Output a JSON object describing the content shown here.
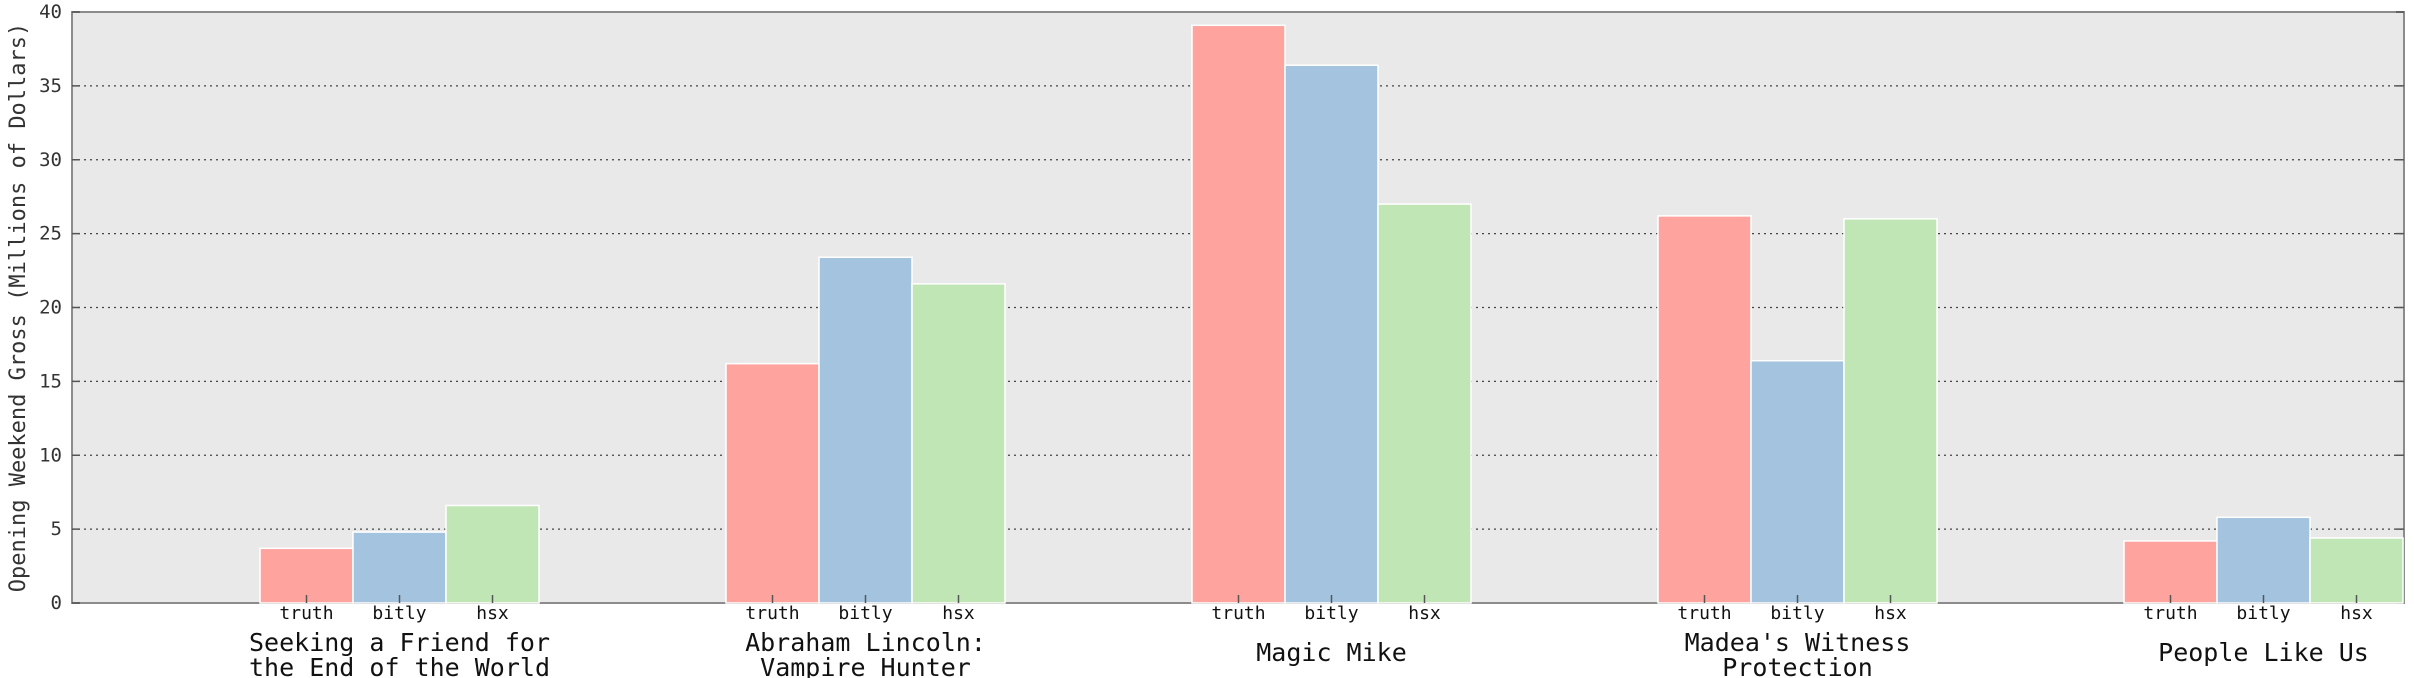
{
  "chart_data": {
    "type": "bar",
    "title": "",
    "xlabel": "",
    "ylabel": "Opening Weekend Gross (Millions of Dollars)",
    "ylim": [
      0,
      40
    ],
    "yticks": [
      0,
      5,
      10,
      15,
      20,
      25,
      30,
      35,
      40
    ],
    "grid": "horizontal",
    "legend": "none",
    "categories": [
      [
        "Seeking a Friend for",
        "the End of the World"
      ],
      [
        "Abraham  Lincoln:",
        "Vampire Hunter"
      ],
      [
        "Magic Mike"
      ],
      [
        "Madea's Witness",
        "Protection"
      ],
      [
        "People Like Us"
      ]
    ],
    "series": [
      {
        "name": "truth",
        "color": "#ffa39e",
        "values": [
          3.7,
          16.2,
          39.1,
          26.2,
          4.2
        ]
      },
      {
        "name": "bitly",
        "color": "#a3c3de",
        "values": [
          4.8,
          23.4,
          36.4,
          16.4,
          5.8
        ]
      },
      {
        "name": "hsx",
        "color": "#c1e6b5",
        "values": [
          6.6,
          21.6,
          27.0,
          26.0,
          4.4
        ]
      }
    ]
  }
}
